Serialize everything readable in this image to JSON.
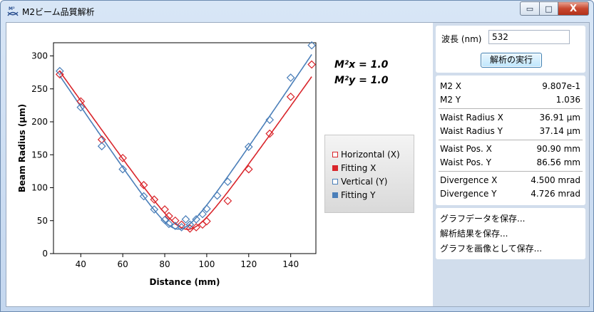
{
  "window": {
    "title": "M2ビーム品質解析",
    "min_glyph": "▭",
    "max_glyph": "□",
    "close_glyph": "X"
  },
  "m2_labels": {
    "x": "M²x = 1.0",
    "y": "M²y = 1.0"
  },
  "legend": [
    {
      "label": "Horizontal (X)",
      "color": "#d9252b",
      "filled": false
    },
    {
      "label": "Fitting X",
      "color": "#d9252b",
      "filled": true
    },
    {
      "label": "Vertical (Y)",
      "color": "#4b7fb9",
      "filled": false
    },
    {
      "label": "Fitting Y",
      "color": "#4b7fb9",
      "filled": true
    }
  ],
  "wavelength": {
    "label": "波長 (nm)",
    "value": "532"
  },
  "run_button": "解析の実行",
  "results": [
    {
      "name": "M2 X",
      "value": "9.807e-1"
    },
    {
      "name": "M2 Y",
      "value": "1.036"
    },
    {
      "name": "Waist Radius X",
      "value": "36.91 μm"
    },
    {
      "name": "Waist Radius Y",
      "value": "37.14 μm"
    },
    {
      "name": "Waist Pos. X",
      "value": "90.90 mm"
    },
    {
      "name": "Waist Pos. Y",
      "value": "86.56 mm"
    },
    {
      "name": "Divergence X",
      "value": "4.500 mrad"
    },
    {
      "name": "Divergence Y",
      "value": "4.726 mrad"
    }
  ],
  "actions": [
    "グラフデータを保存...",
    "解析結果を保存...",
    "グラフを画像として保存..."
  ],
  "chart_data": {
    "type": "scatter",
    "xlabel": "Distance (mm)",
    "ylabel": "Beam Radius (μm)",
    "xlim": [
      27,
      152
    ],
    "ylim": [
      0,
      320
    ],
    "xticks": [
      40,
      60,
      80,
      100,
      120,
      140
    ],
    "yticks": [
      0,
      50,
      100,
      150,
      200,
      250,
      300
    ],
    "colors": {
      "x": "#d9252b",
      "y": "#4b7fb9"
    },
    "series": [
      {
        "name": "Horizontal (X)",
        "kind": "points",
        "color": "#d9252b",
        "x": [
          30,
          40,
          50,
          60,
          70,
          75,
          80,
          82,
          85,
          88,
          92,
          95,
          98,
          100,
          110,
          120,
          130,
          140,
          150
        ],
        "y": [
          272,
          231,
          173,
          145,
          104,
          82,
          67,
          57,
          50,
          44,
          38,
          40,
          44,
          49,
          80,
          128,
          182,
          238,
          287
        ]
      },
      {
        "name": "Fitting X",
        "kind": "line",
        "color": "#d9252b",
        "waist_um": 36.91,
        "waist_pos_mm": 90.9,
        "divergence_mrad": 4.5
      },
      {
        "name": "Vertical (Y)",
        "kind": "points",
        "color": "#4b7fb9",
        "x": [
          30,
          40,
          50,
          60,
          70,
          75,
          80,
          82,
          85,
          88,
          90,
          92,
          95,
          98,
          100,
          105,
          110,
          120,
          130,
          140,
          150
        ],
        "y": [
          277,
          222,
          163,
          128,
          87,
          67,
          51,
          45,
          42,
          40,
          52,
          44,
          52,
          60,
          68,
          88,
          109,
          162,
          203,
          267,
          316
        ]
      },
      {
        "name": "Fitting Y",
        "kind": "line",
        "color": "#4b7fb9",
        "waist_um": 37.14,
        "waist_pos_mm": 86.56,
        "divergence_mrad": 4.726
      }
    ]
  }
}
